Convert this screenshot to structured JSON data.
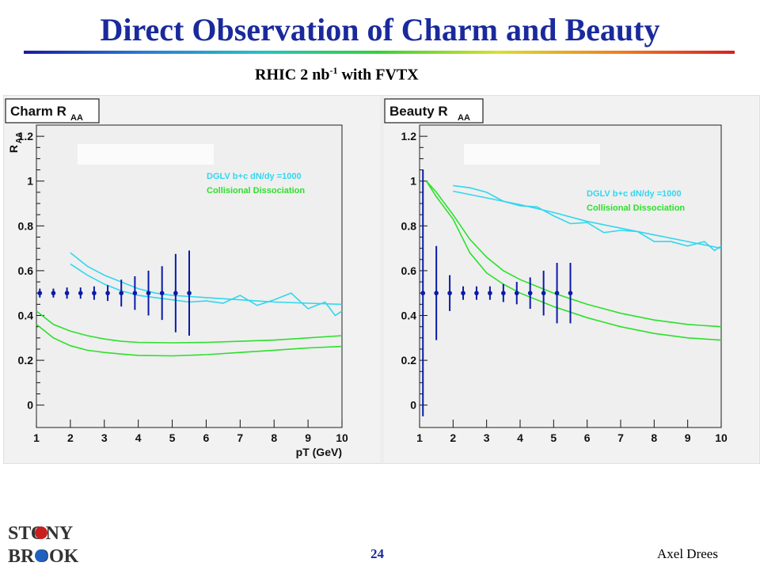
{
  "slide": {
    "title": "Direct Observation of Charm and Beauty",
    "subtitle_main": "RHIC 2 nb",
    "subtitle_sup": "-1",
    "subtitle_tail": " with FVTX",
    "page_number": "24",
    "author": "Axel Drees",
    "logo_text_line1": "STONY",
    "logo_text_line2": "BROOK"
  },
  "colors": {
    "title": "#1a2a9c",
    "dglv": "#33d6ee",
    "collisional": "#2ce02c",
    "data_points": "#0a1aa8",
    "plot_bg": "#efefef"
  },
  "chart_data": [
    {
      "type": "line",
      "title": "Charm R",
      "title_sub": "AA",
      "ylabel": "R",
      "ylabel_sub": "AA",
      "xlabel": "pT (GeV)",
      "xlim": [
        1,
        10
      ],
      "ylim": [
        -0.1,
        1.25
      ],
      "xticks": [
        1,
        2,
        3,
        4,
        5,
        6,
        7,
        8,
        9,
        10
      ],
      "yticks": [
        0,
        0.2,
        0.4,
        0.6,
        0.8,
        1,
        1.2
      ],
      "ytick_labels": [
        "0",
        "0.2",
        "0.4",
        "0.6",
        "0.8",
        "1",
        "1.2"
      ],
      "legend": [
        {
          "label": "DGLV b+c dN/dy =1000",
          "color": "#33d6ee"
        },
        {
          "label": "Collisional Dissociation",
          "color": "#2ce02c"
        }
      ],
      "series": [
        {
          "group": "dglv",
          "x": [
            2,
            2.5,
            3,
            3.5,
            4,
            4.5,
            5,
            5.5,
            6,
            6.5,
            7,
            8,
            9,
            10
          ],
          "y": [
            0.68,
            0.62,
            0.58,
            0.55,
            0.52,
            0.5,
            0.49,
            0.485,
            0.48,
            0.475,
            0.47,
            0.46,
            0.455,
            0.45
          ]
        },
        {
          "group": "dglv",
          "x": [
            2,
            2.5,
            3,
            3.5,
            4,
            4.5,
            5,
            5.5,
            6,
            6.5,
            7,
            7.5,
            8,
            8.5,
            9,
            9.5,
            9.8,
            10
          ],
          "y": [
            0.63,
            0.58,
            0.54,
            0.51,
            0.49,
            0.48,
            0.47,
            0.46,
            0.465,
            0.455,
            0.49,
            0.445,
            0.47,
            0.5,
            0.43,
            0.46,
            0.4,
            0.42
          ]
        },
        {
          "group": "collisional",
          "x": [
            1,
            1.5,
            2,
            2.5,
            3,
            3.5,
            4,
            5,
            6,
            7,
            8,
            9,
            10
          ],
          "y": [
            0.42,
            0.36,
            0.33,
            0.31,
            0.295,
            0.285,
            0.28,
            0.278,
            0.28,
            0.285,
            0.29,
            0.3,
            0.31
          ]
        },
        {
          "group": "collisional",
          "x": [
            1,
            1.5,
            2,
            2.5,
            3,
            3.5,
            4,
            5,
            6,
            7,
            8,
            9,
            10
          ],
          "y": [
            0.36,
            0.3,
            0.265,
            0.245,
            0.235,
            0.228,
            0.222,
            0.22,
            0.225,
            0.235,
            0.245,
            0.255,
            0.262
          ]
        }
      ],
      "points": {
        "x": [
          1.1,
          1.5,
          1.9,
          2.3,
          2.7,
          3.1,
          3.5,
          3.9,
          4.3,
          4.7,
          5.1,
          5.5
        ],
        "y": [
          0.5,
          0.5,
          0.5,
          0.5,
          0.5,
          0.5,
          0.5,
          0.5,
          0.5,
          0.5,
          0.5,
          0.5
        ],
        "err": [
          0.02,
          0.02,
          0.025,
          0.025,
          0.03,
          0.035,
          0.06,
          0.075,
          0.1,
          0.12,
          0.175,
          0.19
        ]
      }
    },
    {
      "type": "line",
      "title": "Beauty R",
      "title_sub": "AA",
      "xlabel": "",
      "xlim": [
        1,
        10
      ],
      "ylim": [
        -0.1,
        1.25
      ],
      "xticks": [
        1,
        2,
        3,
        4,
        5,
        6,
        7,
        8,
        9,
        10
      ],
      "yticks": [
        0,
        0.2,
        0.4,
        0.6,
        0.8,
        1,
        1.2
      ],
      "ytick_labels": [
        "0",
        "0.2",
        "0.4",
        "0.6",
        "0.8",
        "1",
        "1.2"
      ],
      "legend": [
        {
          "label": "DGLV b+c dN/dy =1000",
          "color": "#33d6ee"
        },
        {
          "label": "Collisional Dissociation",
          "color": "#2ce02c"
        }
      ],
      "series": [
        {
          "group": "dglv",
          "x": [
            2,
            3,
            4,
            5,
            6,
            7,
            8,
            9,
            10
          ],
          "y": [
            0.955,
            0.925,
            0.895,
            0.86,
            0.82,
            0.79,
            0.76,
            0.73,
            0.7
          ]
        },
        {
          "group": "dglv",
          "x": [
            2,
            2.5,
            3,
            3.5,
            4,
            4.5,
            5,
            5.5,
            6,
            6.5,
            7,
            7.5,
            8,
            8.5,
            9,
            9.5,
            9.8,
            10
          ],
          "y": [
            0.98,
            0.97,
            0.95,
            0.91,
            0.89,
            0.885,
            0.845,
            0.81,
            0.815,
            0.77,
            0.78,
            0.775,
            0.73,
            0.73,
            0.71,
            0.73,
            0.69,
            0.71
          ]
        },
        {
          "group": "collisional",
          "x": [
            1.2,
            1.5,
            2,
            2.5,
            3,
            3.5,
            4,
            5,
            6,
            7,
            8,
            9,
            10
          ],
          "y": [
            1,
            0.95,
            0.85,
            0.74,
            0.66,
            0.6,
            0.56,
            0.5,
            0.45,
            0.41,
            0.38,
            0.36,
            0.35
          ]
        },
        {
          "group": "collisional",
          "x": [
            1.2,
            1.5,
            2,
            2.5,
            3,
            3.5,
            4,
            5,
            6,
            7,
            8,
            9,
            10
          ],
          "y": [
            1,
            0.93,
            0.83,
            0.68,
            0.59,
            0.54,
            0.5,
            0.44,
            0.39,
            0.35,
            0.32,
            0.3,
            0.29
          ]
        }
      ],
      "points": {
        "x": [
          1.1,
          1.5,
          1.9,
          2.3,
          2.7,
          3.1,
          3.5,
          3.9,
          4.3,
          4.7,
          5.1,
          5.5
        ],
        "y": [
          0.5,
          0.5,
          0.5,
          0.5,
          0.5,
          0.5,
          0.5,
          0.5,
          0.5,
          0.5,
          0.5,
          0.5
        ],
        "err": [
          0.55,
          0.21,
          0.08,
          0.03,
          0.03,
          0.03,
          0.04,
          0.05,
          0.07,
          0.1,
          0.135,
          0.135
        ]
      }
    }
  ]
}
